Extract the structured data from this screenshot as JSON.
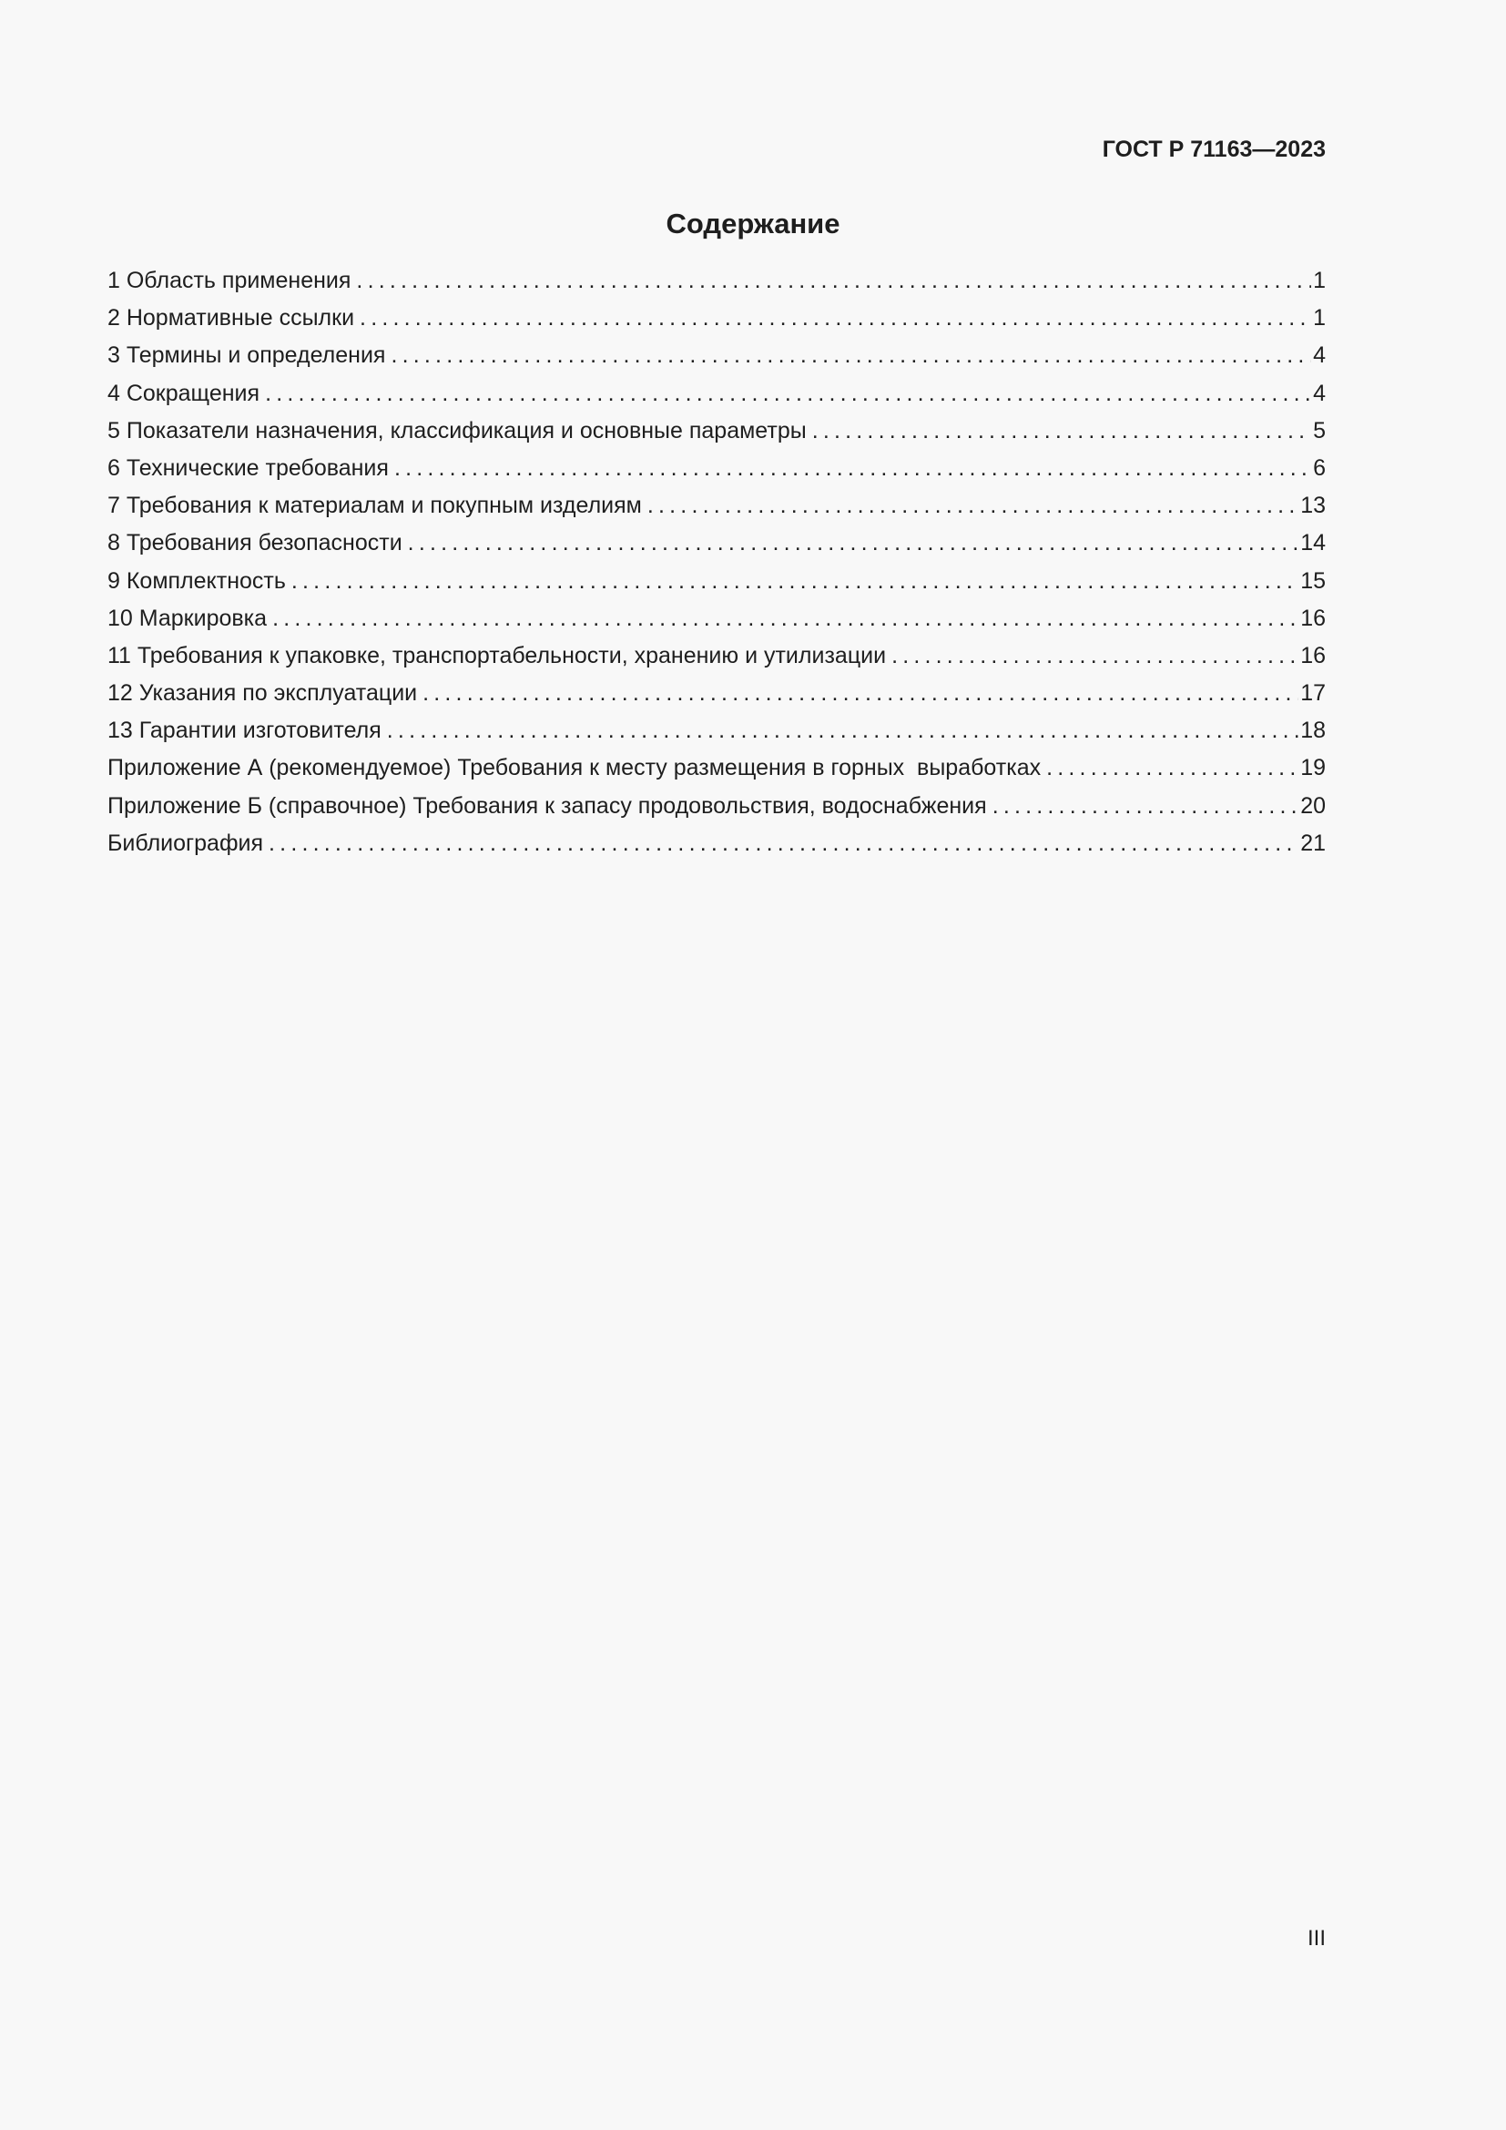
{
  "header": {
    "doc_code": "ГОСТ Р 71163—2023"
  },
  "title": "Содержание",
  "toc": [
    {
      "label": "1 Область применения",
      "page": "1"
    },
    {
      "label": "2 Нормативные ссылки",
      "page": "1"
    },
    {
      "label": "3 Термины и определения",
      "page": "4"
    },
    {
      "label": "4 Сокращения",
      "page": "4"
    },
    {
      "label": "5 Показатели назначения, классификация и основные параметры",
      "page": "5"
    },
    {
      "label": "6 Технические требования",
      "page": "6"
    },
    {
      "label": "7 Требования к материалам и покупным изделиям",
      "page": "13"
    },
    {
      "label": "8 Требования безопасности",
      "page": "14"
    },
    {
      "label": "9 Комплектность",
      "page": "15"
    },
    {
      "label": "10 Маркировка",
      "page": "16"
    },
    {
      "label": "11 Требования к упаковке, транспортабельности, хранению и утилизации",
      "page": "16"
    },
    {
      "label": "12 Указания по эксплуатации",
      "page": "17"
    },
    {
      "label": "13 Гарантии изготовителя",
      "page": "18"
    },
    {
      "label": "Приложение А (рекомендуемое) Требования к месту размещения в горных  выработках",
      "page": "19"
    },
    {
      "label": "Приложение Б (справочное) Требования к запасу продовольствия, водоснабжения",
      "page": "20"
    },
    {
      "label": "Библиография",
      "page": "21"
    }
  ],
  "footer": {
    "page_number": "III"
  }
}
